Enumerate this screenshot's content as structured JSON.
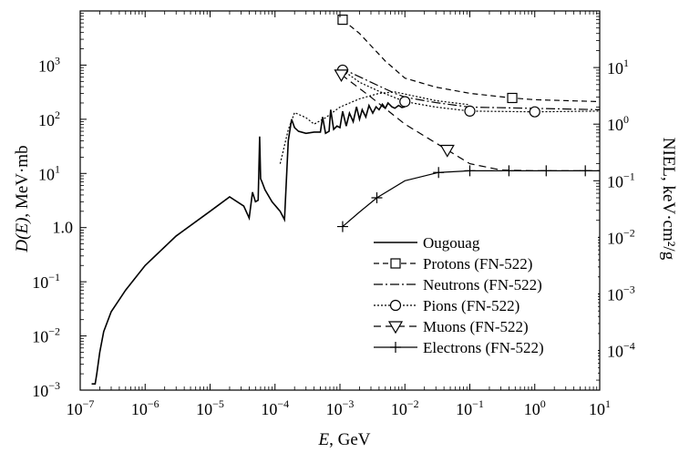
{
  "chart_data": {
    "type": "line",
    "xlabel_italic": "E",
    "xlabel_rest": ", GeV",
    "ylabel_italic": "D(E)",
    "ylabel_rest": ", MeV·mb",
    "y2label": "NIEL, keV·cm²/g",
    "x_scale": "log",
    "y_scale": "log",
    "y2_scale": "log",
    "xlim": [
      1e-07,
      10
    ],
    "ylim": [
      0.001,
      10000
    ],
    "y2lim": [
      2e-05,
      100
    ],
    "grid": false,
    "legend_position": "lower-right",
    "x_ticks": [
      {
        "value": 1e-07,
        "base": "10",
        "exp": "−7"
      },
      {
        "value": 1e-06,
        "base": "10",
        "exp": "−6"
      },
      {
        "value": 1e-05,
        "base": "10",
        "exp": "−5"
      },
      {
        "value": 0.0001,
        "base": "10",
        "exp": "−4"
      },
      {
        "value": 0.001,
        "base": "10",
        "exp": "−3"
      },
      {
        "value": 0.01,
        "base": "10",
        "exp": "−2"
      },
      {
        "value": 0.1,
        "base": "10",
        "exp": "−1"
      },
      {
        "value": 1,
        "base": "10",
        "exp": "0"
      },
      {
        "value": 10,
        "base": "10",
        "exp": "1"
      }
    ],
    "y_ticks": [
      {
        "value": 0.001,
        "base": "10",
        "exp": "−3"
      },
      {
        "value": 0.01,
        "base": "10",
        "exp": "−2"
      },
      {
        "value": 0.1,
        "base": "10",
        "exp": "−1"
      },
      {
        "value": 1,
        "base": "10",
        "exp": "0",
        "plain": "1.0"
      },
      {
        "value": 10,
        "base": "10",
        "exp": "1"
      },
      {
        "value": 100,
        "base": "10",
        "exp": "2"
      },
      {
        "value": 1000,
        "base": "10",
        "exp": "3"
      }
    ],
    "y2_ticks": [
      {
        "value": 0.0001,
        "base": "10",
        "exp": "−4"
      },
      {
        "value": 0.001,
        "base": "10",
        "exp": "−3"
      },
      {
        "value": 0.01,
        "base": "10",
        "exp": "−2"
      },
      {
        "value": 0.1,
        "base": "10",
        "exp": "−1"
      },
      {
        "value": 1,
        "base": "10",
        "exp": "0"
      },
      {
        "value": 10,
        "base": "10",
        "exp": "1"
      }
    ],
    "series": [
      {
        "name": "Ougouag",
        "axis": "left",
        "dash": "solid",
        "marker": "none",
        "x": [
          1.5e-07,
          1.7e-07,
          1.8e-07,
          2e-07,
          2.3e-07,
          3e-07,
          5e-07,
          1e-06,
          3e-06,
          1e-05,
          2e-05,
          3.3e-05,
          4e-05,
          4.5e-05,
          5e-05,
          5.5e-05,
          5.8e-05,
          6e-05,
          6.3e-05,
          7e-05,
          9e-05,
          0.00012,
          0.00014,
          0.00016,
          0.00018,
          0.0002,
          0.00023,
          0.0003,
          0.0004,
          0.0005,
          0.00054,
          0.0006,
          0.00068,
          0.00072,
          0.0008,
          0.0009,
          0.001,
          0.0011,
          0.00125,
          0.0014,
          0.0016,
          0.0018,
          0.002,
          0.0022,
          0.0025,
          0.0028,
          0.0032,
          0.0036,
          0.004,
          0.0045,
          0.005,
          0.0055,
          0.0063,
          0.007,
          0.008,
          0.009,
          0.01
        ],
        "y": [
          0.0013,
          0.0013,
          0.002,
          0.005,
          0.012,
          0.028,
          0.07,
          0.2,
          0.7,
          2.0,
          3.7,
          2.5,
          1.5,
          4.5,
          3.0,
          3.2,
          48,
          8,
          7,
          5,
          3,
          2,
          1.4,
          40,
          100,
          70,
          60,
          55,
          58,
          58,
          110,
          55,
          60,
          150,
          65,
          75,
          70,
          140,
          75,
          130,
          90,
          170,
          100,
          150,
          110,
          180,
          130,
          170,
          150,
          190,
          160,
          200,
          170,
          160,
          180,
          165,
          170
        ]
      },
      {
        "name": "Protons (FN-522)",
        "axis": "right",
        "dash": "6,4",
        "marker": "square",
        "x": [
          0.0011,
          0.002,
          0.005,
          0.01,
          0.03,
          0.1,
          0.45,
          1,
          10
        ],
        "y": [
          70,
          40,
          13,
          6.5,
          4.5,
          3.5,
          2.9,
          2.7,
          2.5
        ],
        "marker_x": [
          0.0011,
          0.45
        ]
      },
      {
        "name": "Neutrons (FN-522)",
        "axis": "right",
        "dash": "10,3,2,3",
        "marker": "none",
        "x": [
          0.001,
          0.003,
          0.007,
          0.01,
          0.03,
          0.1,
          1,
          10
        ],
        "y": [
          10,
          5.5,
          3.5,
          3.0,
          2.4,
          2.0,
          1.9,
          1.8
        ]
      },
      {
        "name": "Pions (FN-522)",
        "axis": "right",
        "dash": "2,2",
        "marker": "circle",
        "x": [
          0.0011,
          0.002,
          0.004,
          0.01,
          0.03,
          0.1,
          1,
          10
        ],
        "y": [
          9,
          5.5,
          3.8,
          2.5,
          2.0,
          1.7,
          1.65,
          1.7
        ],
        "marker_x": [
          0.0011,
          0.01,
          0.1,
          1
        ]
      },
      {
        "name": "Muons (FN-522)",
        "axis": "right",
        "dash": "8,5",
        "marker": "triangle-down",
        "x": [
          0.00105,
          0.003,
          0.01,
          0.045,
          0.1,
          0.3,
          1,
          10
        ],
        "y": [
          7.5,
          3.0,
          1.0,
          0.35,
          0.2,
          0.155,
          0.15,
          0.15
        ],
        "marker_x": [
          0.00105,
          0.045
        ]
      },
      {
        "name": "Electrons (FN-522)",
        "axis": "right",
        "dash": "solid",
        "marker": "plus",
        "x": [
          0.0011,
          0.002,
          0.0037,
          0.01,
          0.033,
          0.1,
          0.4,
          1.5,
          6,
          10
        ],
        "y": [
          0.0155,
          0.028,
          0.05,
          0.1,
          0.14,
          0.15,
          0.15,
          0.15,
          0.15,
          0.15
        ],
        "marker_x": [
          0.0011,
          0.0037,
          0.033,
          0.1,
          0.4,
          1.5,
          6
        ]
      },
      {
        "name": "",
        "axis": "right",
        "dash": "2,2",
        "marker": "none",
        "x": [
          0.00012,
          0.00016,
          0.0002,
          0.0003,
          0.0004,
          0.0006,
          0.001,
          0.002,
          0.004,
          0.007,
          0.01,
          0.03,
          0.1
        ],
        "y": [
          0.2,
          0.8,
          1.6,
          1.3,
          1.0,
          1.3,
          2.0,
          2.8,
          3.5,
          3.7,
          3.4,
          2.6,
          2.2
        ]
      }
    ]
  }
}
